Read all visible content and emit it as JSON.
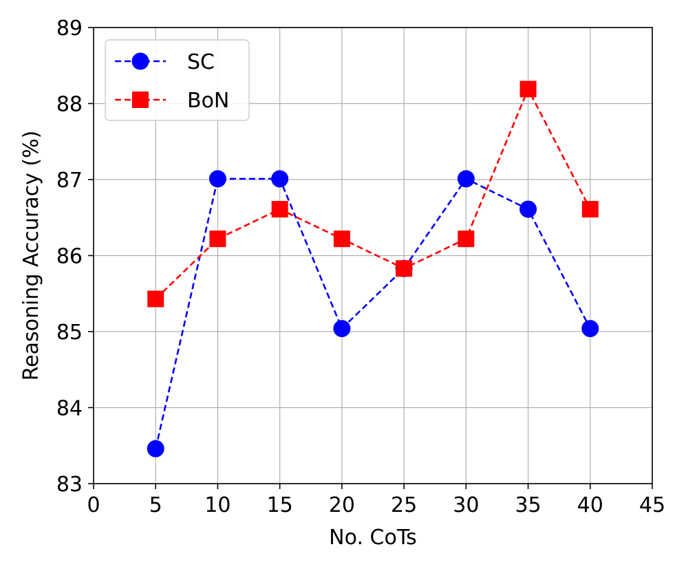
{
  "chart_data": {
    "type": "line",
    "xlabel": "No. CoTs",
    "ylabel": "Reasoning Accuracy (%)",
    "xlim": [
      0,
      45
    ],
    "ylim": [
      83,
      89
    ],
    "xticks": [
      0,
      5,
      10,
      15,
      20,
      25,
      30,
      35,
      40,
      45
    ],
    "yticks": [
      83,
      84,
      85,
      86,
      87,
      88,
      89
    ],
    "grid": true,
    "legend_position": "top-left",
    "x": [
      5,
      10,
      15,
      20,
      25,
      30,
      35,
      40
    ],
    "series": [
      {
        "name": "SC",
        "values": [
          83.46,
          87.01,
          87.01,
          85.04,
          85.83,
          87.01,
          86.61,
          85.04
        ],
        "color": "#0000ff",
        "marker": "circle",
        "line_style": "dashed"
      },
      {
        "name": "BoN",
        "values": [
          85.43,
          86.22,
          86.61,
          86.22,
          85.83,
          86.22,
          88.19,
          86.61
        ],
        "color": "#ff0000",
        "marker": "square",
        "line_style": "dashed"
      }
    ]
  }
}
